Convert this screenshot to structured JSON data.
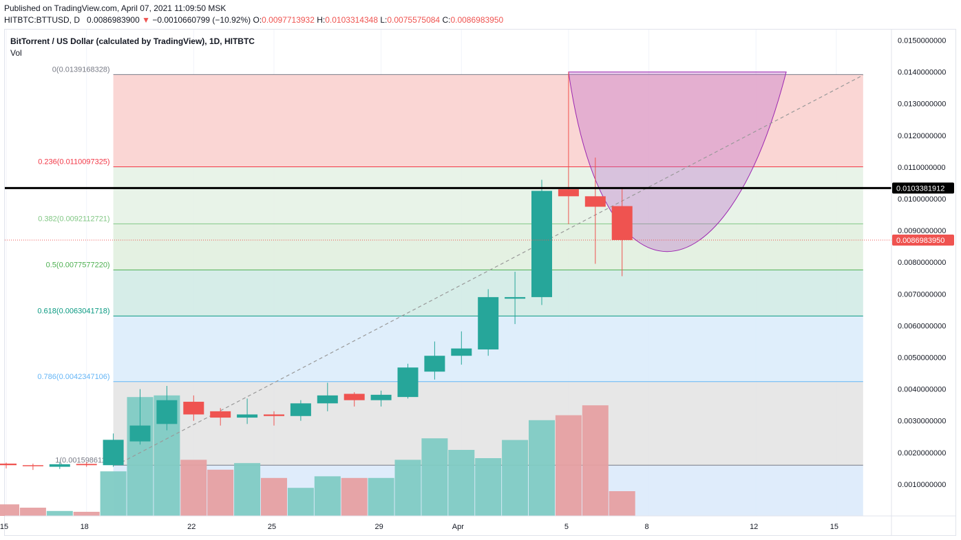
{
  "header": {
    "published": "Published on TradingView.com, April 07, 2021 11:09:50 MSK",
    "symbol": "HITBTC:BTTUSD, D",
    "last": "0.0086983900",
    "arrow": "▼",
    "change": "−0.0010660799 (−10.92%)",
    "o_label": "O:",
    "o_value": "0.0097713932",
    "h_label": "H:",
    "h_value": "0.0103314348",
    "l_label": "L:",
    "l_value": "0.0075575084",
    "c_label": "C:",
    "c_value": "0.0086983950"
  },
  "chart_title": "BitTorrent / US Dollar (calculated by TradingView), 1D, HITBTC",
  "volume_label": "Vol",
  "colors": {
    "up": "#26a69a",
    "down": "#ef5350",
    "vol_up": "#80cbc4",
    "vol_down": "#e6a0a2",
    "fib_0": "#787b86",
    "fib_236": "#f23645",
    "fib_382": "#81c784",
    "fib_5": "#4caf50",
    "fib_618": "#089981",
    "fib_786": "#64b5f6",
    "fib_1": "#787b86",
    "resistance": "#000000",
    "curve": "#9c27b0"
  },
  "chart_data": {
    "type": "candlestick",
    "ylim": [
      0,
      0.0155
    ],
    "y_ticks": [
      "0.0010000000",
      "0.0020000000",
      "0.0030000000",
      "0.0040000000",
      "0.0050000000",
      "0.0060000000",
      "0.0070000000",
      "0.0080000000",
      "0.0090000000",
      "0.0100000000",
      "0.0110000000",
      "0.0120000000",
      "0.0130000000",
      "0.0140000000",
      "0.0150000000"
    ],
    "x_ticks": [
      {
        "day": 15,
        "label": "15"
      },
      {
        "day": 18,
        "label": "18"
      },
      {
        "day": 22,
        "label": "22"
      },
      {
        "day": 25,
        "label": "25"
      },
      {
        "day": 29,
        "label": "29"
      },
      {
        "day": 32,
        "label": "Apr"
      },
      {
        "day": 36,
        "label": "5"
      },
      {
        "day": 39,
        "label": "8"
      },
      {
        "day": 43,
        "label": "12"
      },
      {
        "day": 46,
        "label": "15"
      }
    ],
    "candles": [
      {
        "date": "Mar 15",
        "day": 15,
        "o": 0.00165,
        "h": 0.00168,
        "l": 0.0015,
        "c": 0.0016
      },
      {
        "date": "Mar 16",
        "day": 16,
        "o": 0.0016,
        "h": 0.00165,
        "l": 0.00145,
        "c": 0.00158
      },
      {
        "date": "Mar 17",
        "day": 17,
        "o": 0.00155,
        "h": 0.0017,
        "l": 0.00148,
        "c": 0.00163
      },
      {
        "date": "Mar 18",
        "day": 18,
        "o": 0.00164,
        "h": 0.0017,
        "l": 0.00155,
        "c": 0.0016
      },
      {
        "date": "Mar 19",
        "day": 19,
        "o": 0.0016,
        "h": 0.0026,
        "l": 0.00155,
        "c": 0.0024
      },
      {
        "date": "Mar 20",
        "day": 20,
        "o": 0.00235,
        "h": 0.004,
        "l": 0.00225,
        "c": 0.00285
      },
      {
        "date": "Mar 21",
        "day": 21,
        "o": 0.0029,
        "h": 0.0041,
        "l": 0.0027,
        "c": 0.00365
      },
      {
        "date": "Mar 22",
        "day": 22,
        "o": 0.0036,
        "h": 0.0038,
        "l": 0.003,
        "c": 0.0032
      },
      {
        "date": "Mar 23",
        "day": 23,
        "o": 0.0033,
        "h": 0.0034,
        "l": 0.00285,
        "c": 0.0031
      },
      {
        "date": "Mar 24",
        "day": 24,
        "o": 0.0031,
        "h": 0.0037,
        "l": 0.0029,
        "c": 0.0032
      },
      {
        "date": "Mar 25",
        "day": 25,
        "o": 0.0032,
        "h": 0.0033,
        "l": 0.00285,
        "c": 0.00315
      },
      {
        "date": "Mar 26",
        "day": 26,
        "o": 0.00315,
        "h": 0.00365,
        "l": 0.003,
        "c": 0.00355
      },
      {
        "date": "Mar 27",
        "day": 27,
        "o": 0.00355,
        "h": 0.0042,
        "l": 0.0033,
        "c": 0.0038
      },
      {
        "date": "Mar 28",
        "day": 28,
        "o": 0.00385,
        "h": 0.0039,
        "l": 0.00345,
        "c": 0.00365
      },
      {
        "date": "Mar 29",
        "day": 29,
        "o": 0.00365,
        "h": 0.00395,
        "l": 0.00345,
        "c": 0.00382
      },
      {
        "date": "Mar 30",
        "day": 30,
        "o": 0.00375,
        "h": 0.0048,
        "l": 0.0037,
        "c": 0.00468
      },
      {
        "date": "Mar 31",
        "day": 31,
        "o": 0.00455,
        "h": 0.0055,
        "l": 0.0043,
        "c": 0.00505
      },
      {
        "date": "Apr 1",
        "day": 32,
        "o": 0.00505,
        "h": 0.00582,
        "l": 0.00477,
        "c": 0.00528
      },
      {
        "date": "Apr 2",
        "day": 33,
        "o": 0.00525,
        "h": 0.00715,
        "l": 0.00505,
        "c": 0.0069
      },
      {
        "date": "Apr 3",
        "day": 34,
        "o": 0.00685,
        "h": 0.0077,
        "l": 0.00605,
        "c": 0.0069
      },
      {
        "date": "Apr 4",
        "day": 35,
        "o": 0.0069,
        "h": 0.0106,
        "l": 0.00665,
        "c": 0.01025
      },
      {
        "date": "Apr 5",
        "day": 36,
        "o": 0.0103,
        "h": 0.014,
        "l": 0.0092,
        "c": 0.01008
      },
      {
        "date": "Apr 6",
        "day": 37,
        "o": 0.01008,
        "h": 0.0113,
        "l": 0.00795,
        "c": 0.00975
      },
      {
        "date": "Apr 7",
        "day": 38,
        "o": 0.00977,
        "h": 0.01033,
        "l": 0.00756,
        "c": 0.0087
      }
    ],
    "volume": {
      "ylim": [
        0,
        0.6
      ],
      "values": [
        0.07,
        0.05,
        0.03,
        0.025,
        0.27,
        0.72,
        0.73,
        0.34,
        0.28,
        0.32,
        0.23,
        0.17,
        0.24,
        0.23,
        0.23,
        0.34,
        0.47,
        0.4,
        0.35,
        0.46,
        0.58,
        0.61,
        0.67,
        0.15
      ],
      "up": [
        false,
        false,
        true,
        false,
        true,
        true,
        true,
        false,
        false,
        true,
        false,
        true,
        true,
        false,
        true,
        true,
        true,
        true,
        true,
        true,
        true,
        false,
        false,
        false
      ]
    },
    "fibonacci": {
      "x_start_day": 19,
      "x_end_day": 47,
      "levels": [
        {
          "ratio": "0",
          "price": 0.0139168328,
          "label": "0(0.0139168328)"
        },
        {
          "ratio": "0.236",
          "price": 0.0110097325,
          "label": "0.236(0.0110097325)"
        },
        {
          "ratio": "0.382",
          "price": 0.0092112721,
          "label": "0.382(0.0092112721)"
        },
        {
          "ratio": "0.5",
          "price": 0.007757722,
          "label": "0.5(0.0077577220)"
        },
        {
          "ratio": "0.618",
          "price": 0.0063041718,
          "label": "0.618(0.0063041718)"
        },
        {
          "ratio": "0.786",
          "price": 0.0042347106,
          "label": "0.786(0.0042347106)"
        },
        {
          "ratio": "1",
          "price": 0.001598611,
          "label": "1(0.0015986110"
        }
      ]
    },
    "resistance": {
      "price": 0.0103381912,
      "label": "0.0103381912"
    },
    "current_price": {
      "price": 0.008698395,
      "label": "0.0086983950"
    },
    "curve": {
      "start_day": 36,
      "start_price": 0.014,
      "bottom_day": 40,
      "bottom_price": 0.00775,
      "end_day": 44,
      "end_price": 0.014
    },
    "trendline": {
      "from_day": 19,
      "from_price": 0.0016,
      "to_day": 47,
      "to_price": 0.0139
    }
  }
}
